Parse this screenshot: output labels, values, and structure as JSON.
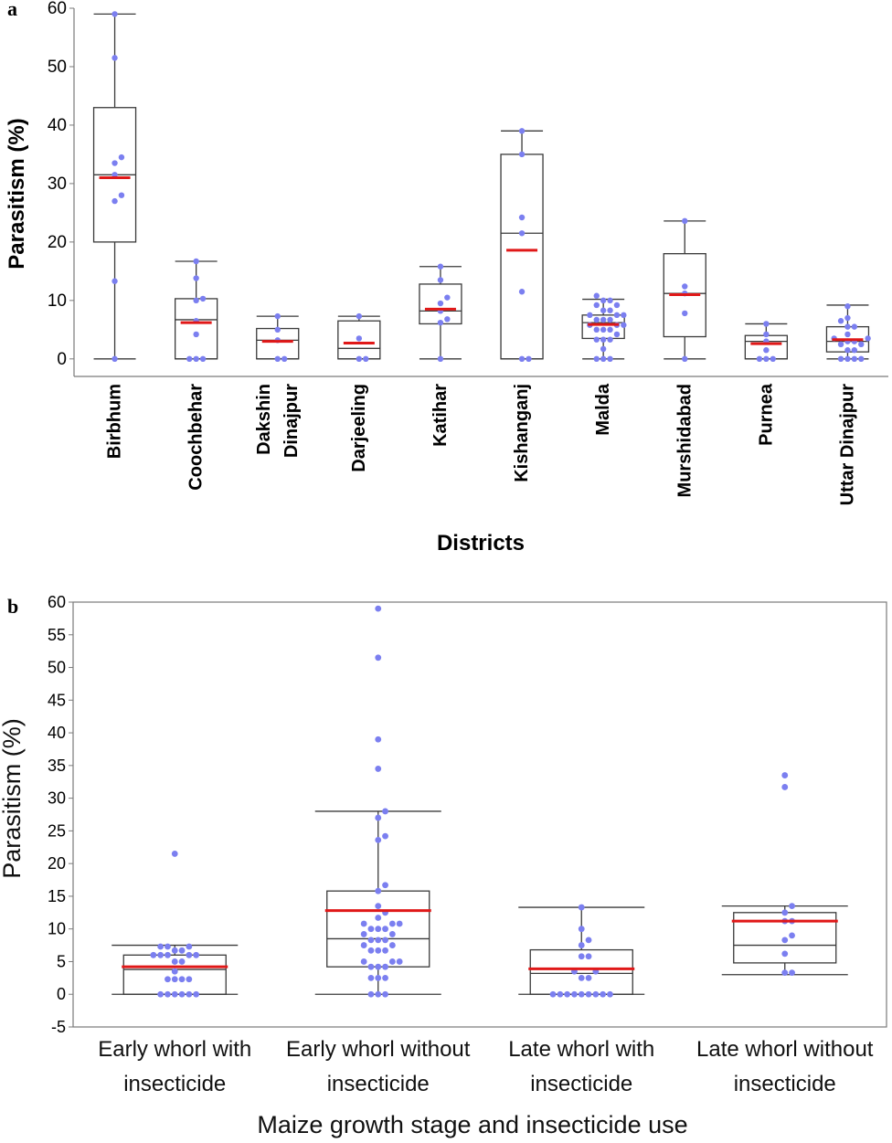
{
  "colors": {
    "box": "#3a3a3a",
    "mean_line": "#e01818",
    "points": "#7b7ff0",
    "axis": "#7a7a7a"
  },
  "chart_data": [
    {
      "panel_label": "a",
      "type": "box",
      "title": "",
      "xlabel": "Districts",
      "ylabel": "Parasitism (%)",
      "ylim": [
        -3,
        60
      ],
      "yticks": [
        0,
        10,
        20,
        30,
        40,
        50,
        60
      ],
      "categories": [
        "Birbhum",
        "Coochbehar",
        "Dakshin Dinajpur",
        "Darjeeling",
        "Katihar",
        "Kishanganj",
        "Malda",
        "Murshidabad",
        "Purnea",
        "Uttar Dinajpur"
      ],
      "category_label_lines": [
        [
          "Birbhum"
        ],
        [
          "Coochbehar"
        ],
        [
          "Dakshin",
          "Dinajpur"
        ],
        [
          "Darjeeling"
        ],
        [
          "Katihar"
        ],
        [
          "Kishanganj"
        ],
        [
          "Malda"
        ],
        [
          "Murshidabad"
        ],
        [
          "Purnea"
        ],
        [
          "Uttar Dinajpur"
        ]
      ],
      "boxes": [
        {
          "whisker_low": 0,
          "q1": 20,
          "median": 31.5,
          "q3": 43,
          "whisker_high": 59,
          "mean": 31,
          "points": [
            0,
            13.3,
            27,
            28,
            31.5,
            33.5,
            34.5,
            51.5,
            59
          ]
        },
        {
          "whisker_low": 0,
          "q1": 0,
          "median": 6.7,
          "q3": 10.3,
          "whisker_high": 16.7,
          "mean": 6.2,
          "points": [
            0,
            0,
            0,
            4.2,
            6.5,
            10,
            10.3,
            13.8,
            16.7
          ]
        },
        {
          "whisker_low": 0,
          "q1": 0,
          "median": 3.2,
          "q3": 5.2,
          "whisker_high": 7.3,
          "mean": 3,
          "points": [
            0,
            0,
            3.2,
            5,
            7.3
          ]
        },
        {
          "whisker_low": 0,
          "q1": 0,
          "median": 1.8,
          "q3": 6.5,
          "whisker_high": 7.3,
          "mean": 2.7,
          "points": [
            0,
            0,
            3.5,
            7.3
          ]
        },
        {
          "whisker_low": 0,
          "q1": 6,
          "median": 8.2,
          "q3": 12.8,
          "whisker_high": 15.8,
          "mean": 8.5,
          "points": [
            0,
            6.2,
            6.8,
            8.2,
            9.5,
            10.5,
            13.5,
            15.8
          ]
        },
        {
          "whisker_low": 0,
          "q1": 0,
          "median": 21.5,
          "q3": 35,
          "whisker_high": 39,
          "mean": 18.6,
          "points": [
            0,
            0,
            11.5,
            21.5,
            24.2,
            35,
            39
          ]
        },
        {
          "whisker_low": 0,
          "q1": 3.5,
          "median": 6.2,
          "q3": 7.5,
          "whisker_high": 10.2,
          "mean": 5.9,
          "points": [
            0,
            0,
            0,
            1.7,
            3.3,
            3.3,
            3.3,
            4.2,
            5,
            5,
            5,
            5.8,
            5.8,
            5.8,
            6.7,
            6.7,
            6.7,
            7.5,
            7.5,
            7.5,
            8.3,
            8.3,
            9.2,
            9.2,
            10,
            10,
            10.8
          ]
        },
        {
          "whisker_low": 0,
          "q1": 3.8,
          "median": 11.2,
          "q3": 18,
          "whisker_high": 23.6,
          "mean": 11,
          "points": [
            0,
            7.8,
            11.2,
            12.4,
            23.6
          ]
        },
        {
          "whisker_low": 0,
          "q1": 0,
          "median": 3,
          "q3": 4,
          "whisker_high": 6,
          "mean": 2.6,
          "points": [
            0,
            0,
            0,
            1.5,
            3,
            4.2,
            6
          ]
        },
        {
          "whisker_low": 0,
          "q1": 1.2,
          "median": 3,
          "q3": 5.5,
          "whisker_high": 9.2,
          "mean": 3.3,
          "points": [
            0,
            0,
            0,
            0,
            1.5,
            1.5,
            2.5,
            2.5,
            3,
            3,
            3.5,
            3.5,
            4.2,
            5.5,
            5.5,
            6.5,
            7,
            9
          ]
        }
      ]
    },
    {
      "panel_label": "b",
      "type": "box",
      "title": "",
      "xlabel": "Maize growth stage and insecticide use",
      "ylabel": "Parasitism (%)",
      "ylim": [
        -5,
        60
      ],
      "yticks": [
        -5,
        0,
        5,
        10,
        15,
        20,
        25,
        30,
        35,
        40,
        45,
        50,
        55,
        60
      ],
      "categories": [
        "Early whorl with insecticide",
        "Early whorl without insecticide",
        "Late whorl with insecticide",
        "Late whorl without insecticide"
      ],
      "category_label_lines": [
        [
          "Early whorl with",
          "insecticide"
        ],
        [
          "Early whorl without",
          "insecticide"
        ],
        [
          "Late whorl with",
          "insecticide"
        ],
        [
          "Late whorl without",
          "insecticide"
        ]
      ],
      "boxes": [
        {
          "whisker_low": 0,
          "q1": 0,
          "median": 3.8,
          "q3": 6,
          "whisker_high": 7.5,
          "mean": 4.2,
          "points": [
            0,
            0,
            0,
            0,
            0,
            0,
            2.3,
            2.3,
            2.3,
            2.3,
            3.5,
            5,
            5,
            6,
            6,
            6,
            6,
            6,
            6.7,
            6.7,
            7.3,
            7.3,
            7.3,
            21.5
          ]
        },
        {
          "whisker_low": 0,
          "q1": 4.2,
          "median": 8.5,
          "q3": 15.8,
          "whisker_high": 28,
          "mean": 12.8,
          "points": [
            0,
            0,
            0,
            2.5,
            2.5,
            2.5,
            4.2,
            4.2,
            4.2,
            5,
            5,
            5,
            6.7,
            6.7,
            6.7,
            7.5,
            7.5,
            8.3,
            8.3,
            8.3,
            9.2,
            9.2,
            10,
            10,
            10,
            10.8,
            10.8,
            10.8,
            11.7,
            12.5,
            13.5,
            15.8,
            16.7,
            23.6,
            24.2,
            27,
            28,
            34.5,
            39,
            51.5,
            59
          ]
        },
        {
          "whisker_low": 0,
          "q1": 0,
          "median": 3.2,
          "q3": 6.8,
          "whisker_high": 13.3,
          "mean": 3.9,
          "points": [
            0,
            0,
            0,
            0,
            0,
            0,
            0,
            0,
            0,
            2.5,
            2.5,
            3.5,
            3.5,
            5.8,
            5.8,
            7.5,
            8.3,
            10,
            13.3
          ]
        },
        {
          "whisker_low": 3,
          "q1": 4.8,
          "median": 7.5,
          "q3": 12.5,
          "whisker_high": 13.5,
          "mean": 11.2,
          "points": [
            3.3,
            3.3,
            6.2,
            8.3,
            9,
            11.2,
            11.2,
            12.5,
            13.5,
            31.7,
            33.5
          ]
        }
      ]
    }
  ]
}
